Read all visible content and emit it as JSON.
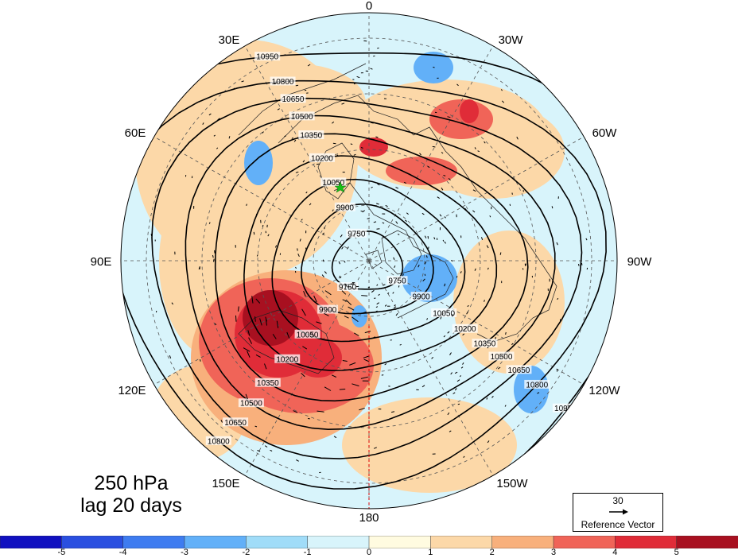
{
  "title": {
    "line1": "250 hPa",
    "line2": "lag 20 days"
  },
  "reference_vector": {
    "magnitude": "30",
    "label": "Reference Vector"
  },
  "longitude_labels": {
    "top": "0",
    "top_right": "30W",
    "right_upper": "60W",
    "right": "90W",
    "right_lower": "120W",
    "bottom_right": "150W",
    "bottom": "180",
    "bottom_left": "150E",
    "left_lower": "120E",
    "left": "90E",
    "left_upper": "60E",
    "top_left": "30E"
  },
  "colorbar": {
    "colors": [
      "#1010c0",
      "#2a4fe0",
      "#3e7cf0",
      "#62b0f8",
      "#a0dcf8",
      "#d8f4fb",
      "#fffbe0",
      "#fcd8a8",
      "#f8b07c",
      "#f06458",
      "#e02c38",
      "#a81020"
    ],
    "tick_labels": [
      "-5",
      "-4",
      "-3",
      "-2",
      "-1",
      "0",
      "1",
      "2",
      "3",
      "4",
      "5"
    ]
  },
  "chart_data": {
    "type": "polar-stereographic map",
    "title": "250 hPa lag 20 days",
    "projection": "north polar stereographic",
    "shading": {
      "range": [
        -5,
        5
      ],
      "levels": [
        -5,
        -4,
        -3,
        -2,
        -1,
        0,
        1,
        2,
        3,
        4,
        5
      ],
      "notable_anomalies": [
        {
          "region": "East Asia / Northwest Pacific (120E-170E)",
          "sign": "positive",
          "max_level": "5+"
        },
        {
          "region": "Europe / North Atlantic (0-30W)",
          "sign": "positive",
          "max_level": "3"
        },
        {
          "region": "Canadian Arctic / Hudson Bay (80W-100W)",
          "sign": "negative",
          "min_level": "-2"
        },
        {
          "region": "Siberia (60E-70E)",
          "sign": "negative",
          "min_level": "-2"
        },
        {
          "region": "North Atlantic near 20W",
          "sign": "negative",
          "min_level": "-2"
        },
        {
          "region": "Eastern Pacific near 120W",
          "sign": "negative",
          "min_level": "-2"
        }
      ]
    },
    "contours": {
      "variable": "geopotential height",
      "levels": [
        9750,
        9900,
        10050,
        10200,
        10350,
        10500,
        10650,
        10800,
        10950
      ],
      "labels_shown": [
        "10800",
        "10650",
        "10500",
        "10350",
        "10200",
        "10050",
        "9900",
        "9750",
        "10950"
      ]
    },
    "vectors": {
      "reference_magnitude": 30,
      "reference_label": "Reference Vector"
    },
    "marker": {
      "shape": "star",
      "color": "green",
      "approx_location": "Northern Scandinavia / Kola"
    }
  }
}
